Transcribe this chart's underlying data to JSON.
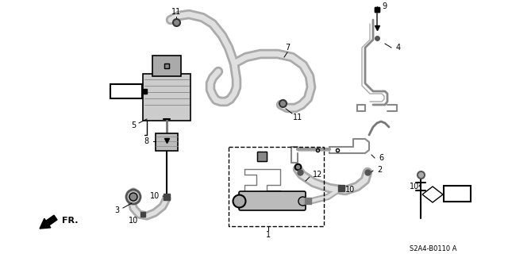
{
  "bg_color": "#ffffff",
  "diagram_code": "S2A4-B0110 A",
  "arrow_label": "FR.",
  "fig_width": 6.4,
  "fig_height": 3.2,
  "dpi": 100,
  "gray_tube": "#999999",
  "dark_gray": "#555555",
  "mid_gray": "#888888",
  "light_gray": "#cccccc"
}
